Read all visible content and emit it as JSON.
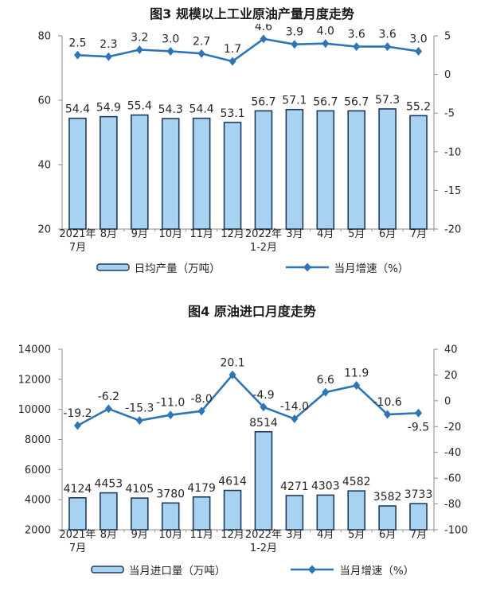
{
  "page": {
    "background": "#ffffff"
  },
  "colors": {
    "bar_fill": "#a8d3f0",
    "bar_stroke": "#1f3a5f",
    "line": "#2e75b6",
    "axis": "#8c8c8c",
    "text": "#262626",
    "title": "#1a1a1a"
  },
  "chart_data": [
    {
      "type": "bar",
      "subtype": "bar+line dual-axis combo",
      "title": "图3 规模以上工业原油产量月度走势",
      "categories": [
        "2021年\n7月",
        "8月",
        "9月",
        "10月",
        "11月",
        "12月",
        "2022年\n1-2月",
        "3月",
        "4月",
        "5月",
        "6月",
        "7月"
      ],
      "series": [
        {
          "name": "日均产量（万吨）",
          "type": "bar",
          "axis": "left",
          "values": [
            54.4,
            54.9,
            55.4,
            54.3,
            54.4,
            53.1,
            56.7,
            57.1,
            56.7,
            56.7,
            57.3,
            55.2
          ],
          "label_format": "fixed1"
        },
        {
          "name": "当月增速（%）",
          "type": "line",
          "axis": "right",
          "values": [
            2.5,
            2.3,
            3.2,
            3.0,
            2.7,
            1.7,
            4.6,
            3.9,
            4.0,
            3.6,
            3.6,
            3.0
          ],
          "label_format": "fixed1",
          "label_below_indices": []
        }
      ],
      "left_axis": {
        "min": 20,
        "max": 80,
        "ticks": [
          80,
          60,
          40,
          20
        ]
      },
      "right_axis": {
        "min": -20,
        "max": 5,
        "ticks": [
          5,
          0,
          -5,
          -10,
          -15,
          -20
        ]
      },
      "grid": false,
      "legend_position": "bottom"
    },
    {
      "type": "bar",
      "subtype": "bar+line dual-axis combo",
      "title": "图4 原油进口月度走势",
      "categories": [
        "2021年\n7月",
        "8月",
        "9月",
        "10月",
        "11月",
        "12月",
        "2022年\n1-2月",
        "3月",
        "4月",
        "5月",
        "6月",
        "7月"
      ],
      "series": [
        {
          "name": "当月进口量（万吨）",
          "type": "bar",
          "axis": "left",
          "values": [
            4124,
            4453,
            4105,
            3780,
            4179,
            4614,
            8514,
            4271,
            4303,
            4582,
            3582,
            3733
          ],
          "label_format": "int"
        },
        {
          "name": "当月增速（%）",
          "type": "line",
          "axis": "right",
          "values": [
            -19.2,
            -6.2,
            -15.3,
            -11.0,
            -8.0,
            20.1,
            -4.9,
            -14.0,
            6.6,
            11.9,
            -10.6,
            -9.5
          ],
          "label_format": "fixed1",
          "label_below_indices": [
            11
          ]
        }
      ],
      "left_axis": {
        "min": 2000,
        "max": 14000,
        "ticks": [
          14000,
          12000,
          10000,
          8000,
          6000,
          4000,
          2000
        ]
      },
      "right_axis": {
        "min": -100,
        "max": 40,
        "ticks": [
          40,
          20,
          0,
          -20,
          -40,
          -60,
          -80,
          -100
        ]
      },
      "grid": false,
      "legend_position": "bottom"
    }
  ]
}
